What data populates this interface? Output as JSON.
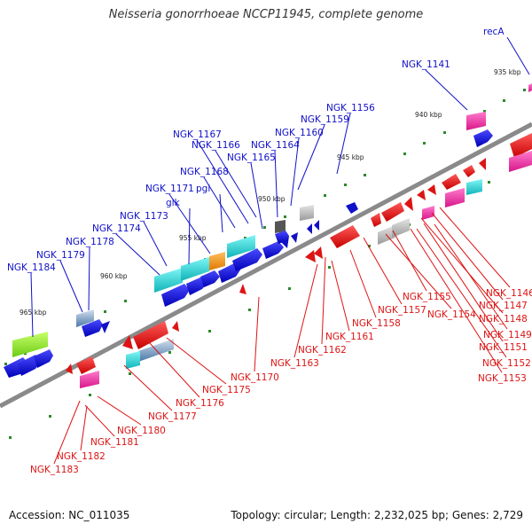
{
  "title": "Neisseria gonorrhoeae NCCP11945, complete genome",
  "footer": {
    "accession": "Accession: NC_011035",
    "summary": "Topology: circular; Length: 2,232,025 bp; Genes: 2,729"
  },
  "colors": {
    "forward": "#1010c8",
    "reverse": "#dd1414",
    "backbone": "#8a8a8a"
  },
  "ticks": [
    {
      "label": "935 kbp",
      "kbp": 935
    },
    {
      "label": "940 kbp",
      "kbp": 940
    },
    {
      "label": "945 kbp",
      "kbp": 945
    },
    {
      "label": "950 kbp",
      "kbp": 950
    },
    {
      "label": "955 kbp",
      "kbp": 955
    },
    {
      "label": "960 kbp",
      "kbp": 960
    },
    {
      "label": "965 kbp",
      "kbp": 965
    }
  ],
  "forward_genes": [
    {
      "name": "recA"
    },
    {
      "name": "NGK_1141"
    },
    {
      "name": "NGK_1156"
    },
    {
      "name": "NGK_1159"
    },
    {
      "name": "NGK_1160"
    },
    {
      "name": "NGK_1164"
    },
    {
      "name": "NGK_1165"
    },
    {
      "name": "NGK_1166"
    },
    {
      "name": "NGK_1167"
    },
    {
      "name": "NGK_1168"
    },
    {
      "name": "pgi"
    },
    {
      "name": "NGK_1171"
    },
    {
      "name": "glk"
    },
    {
      "name": "NGK_1173"
    },
    {
      "name": "NGK_1174"
    },
    {
      "name": "NGK_1178"
    },
    {
      "name": "NGK_1179"
    },
    {
      "name": "NGK_1184"
    }
  ],
  "reverse_genes": [
    {
      "name": "NGK_1146"
    },
    {
      "name": "NGK_1147"
    },
    {
      "name": "NGK_1148"
    },
    {
      "name": "NGK_1149"
    },
    {
      "name": "NGK_1151"
    },
    {
      "name": "NGK_1152"
    },
    {
      "name": "NGK_1153"
    },
    {
      "name": "NGK_1155"
    },
    {
      "name": "NGK_1154"
    },
    {
      "name": "NGK_1157"
    },
    {
      "name": "NGK_1158"
    },
    {
      "name": "NGK_1161"
    },
    {
      "name": "NGK_1162"
    },
    {
      "name": "NGK_1163"
    },
    {
      "name": "NGK_1170"
    },
    {
      "name": "NGK_1175"
    },
    {
      "name": "NGK_1176"
    },
    {
      "name": "NGK_1177"
    },
    {
      "name": "NGK_1180"
    },
    {
      "name": "NGK_1181"
    },
    {
      "name": "NGK_1182"
    },
    {
      "name": "NGK_1183"
    }
  ]
}
